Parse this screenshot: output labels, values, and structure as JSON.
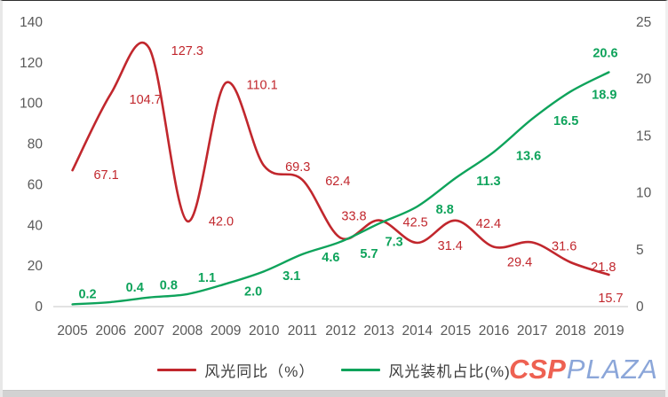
{
  "chart_data": {
    "type": "line",
    "title": "",
    "categories": [
      "2005",
      "2006",
      "2007",
      "2008",
      "2009",
      "2010",
      "2011",
      "2012",
      "2013",
      "2014",
      "2015",
      "2016",
      "2017",
      "2018",
      "2019"
    ],
    "series": [
      {
        "name": "风光同比（%）",
        "axis": "left",
        "color": "#c1272d",
        "smooth": true,
        "values": [
          67.1,
          104.7,
          127.3,
          42.0,
          110.1,
          69.3,
          62.4,
          33.8,
          42.5,
          31.4,
          42.4,
          29.4,
          31.6,
          21.8,
          15.7
        ],
        "labels": [
          "67.1",
          "104.7",
          "127.3",
          "42.0",
          "110.1",
          "69.3",
          "62.4",
          "33.8",
          "42.5",
          "31.4",
          "42.4",
          "29.4",
          "31.6",
          "21.8",
          "15.7"
        ],
        "label_bold": false
      },
      {
        "name": "风光装机占比(%)",
        "axis": "right",
        "color": "#0ea35b",
        "smooth": true,
        "values": [
          0.2,
          0.4,
          0.8,
          1.1,
          2.0,
          3.1,
          4.6,
          5.7,
          7.3,
          8.8,
          11.3,
          13.6,
          16.5,
          18.9,
          20.6
        ],
        "labels": [
          "0.2",
          "0.4",
          "0.8",
          "1.1",
          "2.0",
          "3.1",
          "4.6",
          "5.7",
          "7.3",
          "8.8",
          "11.3",
          "13.6",
          "16.5",
          "18.9",
          "20.6"
        ],
        "label_bold": true
      }
    ],
    "left_axis": {
      "min": 0,
      "max": 140,
      "step": 20,
      "ticks": [
        "0",
        "20",
        "40",
        "60",
        "80",
        "100",
        "120",
        "140"
      ]
    },
    "right_axis": {
      "min": 0,
      "max": 25,
      "step": 5,
      "ticks": [
        "0",
        "5",
        "10",
        "15",
        "20",
        "25"
      ]
    },
    "grid": false,
    "legend_position": "bottom",
    "axis_text_color": "#595959",
    "baseline_color": "#d9d9d9"
  },
  "logo": {
    "csp": "CSP",
    "plaza": "PLAZA",
    "csp_color": "#ee6152",
    "plaza_color": "#8ba6d9"
  }
}
